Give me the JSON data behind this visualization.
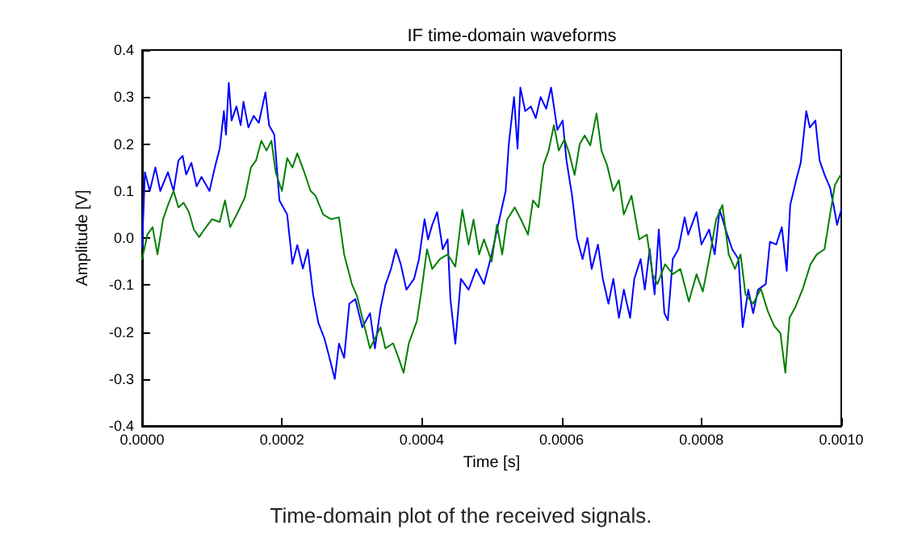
{
  "chart_data": {
    "type": "line",
    "title": "IF time-domain waveforms",
    "xlabel": "Time [s]",
    "ylabel": "Amplitude [V]",
    "annotations": [
      "Time-domain plot of the received signals."
    ],
    "xlim": [
      0,
      0.001
    ],
    "xticks": [
      {
        "value": 0,
        "label": "0.0000"
      },
      0.0002,
      0.0004,
      0.0006,
      0.0008,
      {
        "value": 0.001,
        "label": "0.0010"
      }
    ],
    "ylim": [
      -0.4,
      0.4
    ],
    "yticks": [
      -0.4,
      -0.3,
      -0.2,
      -0.1,
      {
        "value": 0,
        "label": "0.0"
      },
      0.1,
      0.2,
      0.3,
      0.4
    ],
    "grid": false,
    "marker": "none",
    "line_style": "solid",
    "series": [
      {
        "color": "#0000ff",
        "x": [
          0,
          4e-06,
          1.1e-05,
          1.9e-05,
          2.6e-05,
          3.7e-05,
          4.5e-05,
          5.2e-05,
          5.8e-05,
          6.3e-05,
          7.05e-05,
          7.8e-05,
          8.5e-05,
          9.64e-05,
          0.000104,
          0.000111,
          0.000117,
          0.00012,
          0.000124,
          0.000128,
          0.000135,
          0.000141,
          0.000145,
          0.000152,
          0.0001596,
          0.000167,
          0.0001764,
          0.0001816,
          0.000189,
          0.0001964,
          0.0002075,
          0.000215,
          0.000222,
          0.00023,
          0.000237,
          0.0002445,
          0.000252,
          0.000261,
          0.000268,
          0.0002756,
          0.0002816,
          0.000289,
          0.0002964,
          0.000305,
          0.000315,
          0.000326,
          0.000333,
          0.000341,
          0.000348,
          0.000356,
          0.000363,
          0.00037,
          0.000378,
          0.000389,
          0.000396,
          0.000404,
          0.000409,
          0.000415,
          0.000422,
          0.00043,
          0.000437,
          0.000441,
          0.000448,
          0.000456,
          0.000467,
          0.000478,
          0.000489,
          0.0005,
          0.000511,
          0.00052,
          0.0005245,
          0.000532,
          0.000537,
          0.000541,
          0.000548,
          0.000556,
          0.000563,
          0.00057,
          0.000578,
          0.000585,
          0.000594,
          0.0006015,
          0.000607,
          0.000615,
          0.000622,
          0.00063,
          0.000637,
          0.000643,
          0.000652,
          0.000659,
          0.000667,
          0.000674,
          0.000682,
          0.000689,
          0.000698,
          0.000704,
          0.000713,
          0.000719,
          0.000726,
          0.000733,
          0.000739,
          0.000747,
          0.000752,
          0.000759,
          0.000767,
          0.000776,
          0.000781,
          0.000793,
          0.0008,
          0.000811,
          0.000819,
          0.000826,
          0.000837,
          0.000844,
          0.000853,
          0.000859,
          0.000867,
          0.000874,
          0.000881,
          0.000892,
          0.000898,
          0.000907,
          0.000915,
          0.000922,
          0.000927,
          0.000935,
          0.000942,
          0.00095,
          0.000955,
          0.000963,
          0.000969,
          0.000976,
          0.000984,
          0.000989,
          0.000994,
          0.001
        ],
        "values": [
          -0.02,
          0.14,
          0.1,
          0.15,
          0.1,
          0.14,
          0.1,
          0.165,
          0.175,
          0.135,
          0.16,
          0.11,
          0.13,
          0.1,
          0.15,
          0.19,
          0.27,
          0.22,
          0.33,
          0.25,
          0.28,
          0.24,
          0.29,
          0.235,
          0.26,
          0.245,
          0.31,
          0.24,
          0.22,
          0.08,
          0.05,
          -0.055,
          -0.015,
          -0.065,
          -0.025,
          -0.12,
          -0.18,
          -0.215,
          -0.255,
          -0.3,
          -0.225,
          -0.255,
          -0.14,
          -0.13,
          -0.19,
          -0.16,
          -0.235,
          -0.15,
          -0.1,
          -0.066,
          -0.024,
          -0.056,
          -0.11,
          -0.087,
          -0.045,
          0.04,
          -0.003,
          0.028,
          0.055,
          -0.024,
          -0.003,
          -0.13,
          -0.225,
          -0.087,
          -0.11,
          -0.066,
          -0.098,
          -0.035,
          0.04,
          0.1,
          0.2,
          0.3,
          0.19,
          0.32,
          0.27,
          0.28,
          0.255,
          0.3,
          0.275,
          0.32,
          0.23,
          0.25,
          0.165,
          0.09,
          0,
          -0.045,
          0,
          -0.066,
          -0.014,
          -0.087,
          -0.14,
          -0.087,
          -0.17,
          -0.11,
          -0.17,
          -0.087,
          -0.045,
          -0.11,
          -0.024,
          -0.12,
          0.018,
          -0.16,
          -0.175,
          -0.045,
          -0.024,
          0.044,
          0.007,
          0.055,
          -0.014,
          0.018,
          -0.035,
          0.06,
          0.007,
          -0.024,
          -0.045,
          -0.19,
          -0.11,
          -0.16,
          -0.11,
          -0.098,
          -0.008,
          -0.014,
          0.023,
          -0.07,
          0.07,
          0.12,
          0.16,
          0.27,
          0.235,
          0.25,
          0.165,
          0.135,
          0.107,
          0.07,
          0.028,
          0.06
        ]
      },
      {
        "color": "#008000",
        "x": [
          0,
          7.5e-06,
          1.5e-05,
          2.2e-05,
          3e-05,
          3.7e-05,
          4.5e-05,
          5.2e-05,
          5.94e-05,
          6.7e-05,
          7.4e-05,
          8.16e-05,
          8.9e-05,
          0.0001,
          0.000111,
          0.0001186,
          0.000126,
          0.000137,
          0.000147,
          0.0001557,
          0.000163,
          0.0001705,
          0.000178,
          0.000185,
          0.000191,
          0.0002,
          0.0002075,
          0.000215,
          0.000222,
          0.000231,
          0.000241,
          0.000248,
          0.000259,
          0.00027,
          0.0002816,
          0.000289,
          0.0003,
          0.0003075,
          0.000315,
          0.000326,
          0.000333,
          0.000341,
          0.000348,
          0.000359,
          0.000367,
          0.000374,
          0.0003815,
          0.000393,
          0.0004,
          0.0004075,
          0.000415,
          0.000426,
          0.000437,
          0.000448,
          0.000458,
          0.000467,
          0.000474,
          0.000482,
          0.000489,
          0.0005,
          0.0005075,
          0.000515,
          0.000522,
          0.000533,
          0.000542,
          0.000552,
          0.000559,
          0.000567,
          0.000574,
          0.0005815,
          0.000589,
          0.000596,
          0.000604,
          0.000611,
          0.0006186,
          0.000626,
          0.000633,
          0.000641,
          0.00065,
          0.000657,
          0.000665,
          0.000674,
          0.000682,
          0.000689,
          0.0007,
          0.000711,
          0.000722,
          0.00073,
          0.000737,
          0.000748,
          0.000759,
          0.00077,
          0.000782,
          0.000793,
          0.000802,
          0.000811,
          0.000821,
          0.00083,
          0.000839,
          0.000848,
          0.000856,
          0.000863,
          0.000874,
          0.000885,
          0.000895,
          0.000904,
          0.000913,
          0.00092,
          0.000926,
          0.000935,
          0.000945,
          0.000956,
          0.000965,
          0.000976,
          0.000984,
          0.000991,
          0.000999
        ],
        "values": [
          -0.045,
          0.007,
          0.023,
          -0.035,
          0.04,
          0.07,
          0.1,
          0.065,
          0.075,
          0.055,
          0.018,
          0.002,
          0.018,
          0.04,
          0.034,
          0.08,
          0.023,
          0.055,
          0.086,
          0.15,
          0.165,
          0.207,
          0.186,
          0.207,
          0.14,
          0.1,
          0.17,
          0.15,
          0.18,
          0.144,
          0.1,
          0.09,
          0.05,
          0.04,
          0.044,
          -0.035,
          -0.098,
          -0.124,
          -0.17,
          -0.235,
          -0.214,
          -0.19,
          -0.235,
          -0.224,
          -0.256,
          -0.287,
          -0.224,
          -0.177,
          -0.108,
          -0.024,
          -0.066,
          -0.045,
          -0.035,
          -0.061,
          0.06,
          -0.014,
          0.039,
          -0.035,
          -0.003,
          -0.05,
          0.028,
          -0.035,
          0.039,
          0.065,
          0.039,
          0.007,
          0.08,
          0.065,
          0.155,
          0.186,
          0.24,
          0.186,
          0.21,
          0.18,
          0.134,
          0.2,
          0.218,
          0.197,
          0.265,
          0.186,
          0.155,
          0.1,
          0.123,
          0.05,
          0.09,
          -0.003,
          0.007,
          -0.077,
          -0.098,
          -0.056,
          -0.077,
          -0.066,
          -0.135,
          -0.077,
          -0.114,
          -0.045,
          0.039,
          0.07,
          -0.035,
          -0.066,
          -0.035,
          -0.12,
          -0.14,
          -0.108,
          -0.156,
          -0.187,
          -0.203,
          -0.287,
          -0.17,
          -0.145,
          -0.108,
          -0.056,
          -0.035,
          -0.024,
          0.05,
          0.113,
          0.134
        ]
      }
    ]
  }
}
